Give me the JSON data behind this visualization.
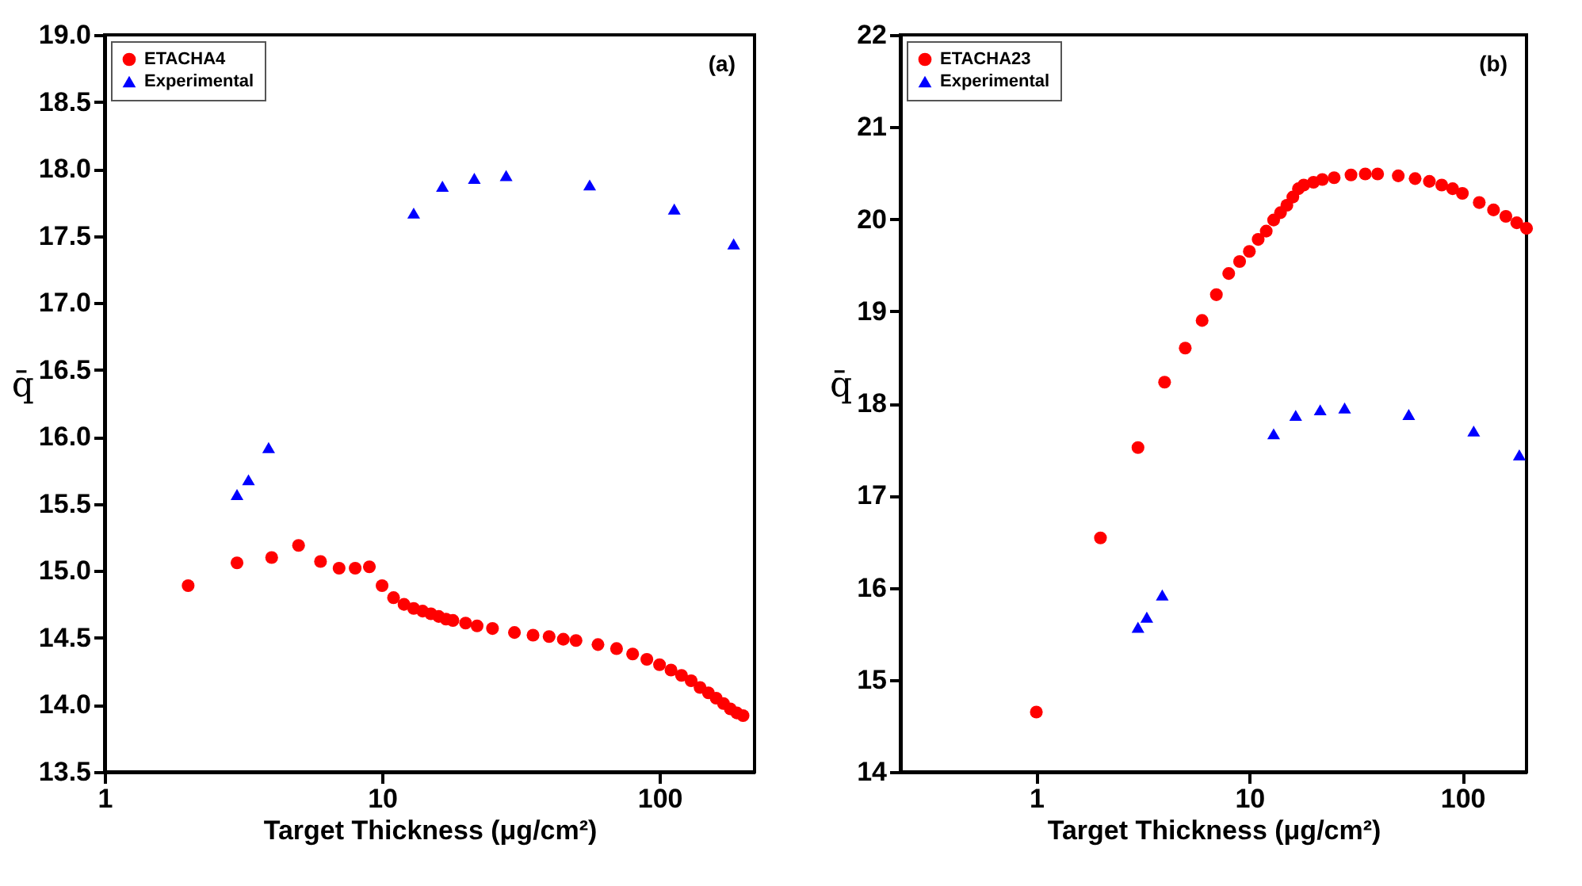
{
  "chart_data": [
    {
      "type": "scatter",
      "xlabel": "Target Thickness (μg/cm²)",
      "ylabel": "q̄",
      "annotations": [
        "(a)"
      ],
      "log": "x",
      "grid": false,
      "legend": "top left",
      "xlim": [
        1,
        220
      ],
      "xticks": [
        1,
        10,
        100
      ],
      "ylim": [
        13.5,
        19.0
      ],
      "yticks": [
        {
          "value": 13.5,
          "label": "13.5"
        },
        {
          "value": 14.0,
          "label": "14.0"
        },
        {
          "value": 14.5,
          "label": "14.5"
        },
        {
          "value": 15.0,
          "label": "15.0"
        },
        {
          "value": 15.5,
          "label": "15.5"
        },
        {
          "value": 16.0,
          "label": "16.0"
        },
        {
          "value": 16.5,
          "label": "16.5"
        },
        {
          "value": 17.0,
          "label": "17.0"
        },
        {
          "value": 17.5,
          "label": "17.5"
        },
        {
          "value": 18.0,
          "label": "18.0"
        },
        {
          "value": 18.5,
          "label": "18.5"
        },
        {
          "value": 19.0,
          "label": "19.0"
        }
      ],
      "series": [
        {
          "name": "ETACHA4",
          "color": "#ff0000",
          "marker": "circle",
          "x": [
            2,
            3,
            4,
            5,
            6,
            7,
            8,
            9,
            10,
            11,
            12,
            13,
            14,
            15,
            16,
            17,
            18,
            20,
            22,
            25,
            30,
            35,
            40,
            45,
            50,
            60,
            70,
            80,
            90,
            100,
            110,
            120,
            130,
            140,
            150,
            160,
            170,
            180,
            190,
            200
          ],
          "values": [
            14.89,
            15.06,
            15.1,
            15.19,
            15.07,
            15.02,
            15.02,
            15.03,
            14.89,
            14.8,
            14.75,
            14.72,
            14.7,
            14.68,
            14.66,
            14.64,
            14.63,
            14.61,
            14.59,
            14.57,
            14.54,
            14.52,
            14.51,
            14.49,
            14.48,
            14.45,
            14.42,
            14.38,
            14.34,
            14.3,
            14.26,
            14.22,
            14.18,
            14.13,
            14.09,
            14.05,
            14.01,
            13.97,
            13.94,
            13.92
          ]
        },
        {
          "name": "Experimental",
          "color": "#0000ff",
          "marker": "triangle",
          "x": [
            3,
            3.3,
            3.9,
            13,
            16.5,
            21.5,
            28,
            56,
            113,
            185
          ],
          "values": [
            15.57,
            15.68,
            15.92,
            17.67,
            17.87,
            17.93,
            17.95,
            17.88,
            17.7,
            17.44
          ]
        }
      ]
    },
    {
      "type": "scatter",
      "xlabel": "Target Thickness (μg/cm²)",
      "ylabel": "q̄",
      "annotations": [
        "(b)"
      ],
      "log": "x",
      "grid": false,
      "legend": "top left",
      "xlim": [
        0.23,
        200
      ],
      "xticks": [
        1,
        10,
        100
      ],
      "ylim": [
        14,
        22
      ],
      "yticks": [
        14,
        15,
        16,
        17,
        18,
        19,
        20,
        21,
        22
      ],
      "series": [
        {
          "name": "ETACHA23",
          "color": "#ff0000",
          "marker": "circle",
          "x": [
            1,
            2,
            3,
            4,
            5,
            6,
            7,
            8,
            9,
            10,
            11,
            12,
            13,
            14,
            15,
            16,
            17,
            18,
            20,
            22,
            25,
            30,
            35,
            40,
            50,
            60,
            70,
            80,
            90,
            100,
            120,
            140,
            160,
            180,
            200
          ],
          "values": [
            14.65,
            16.54,
            17.52,
            18.23,
            18.6,
            18.9,
            19.18,
            19.41,
            19.54,
            19.65,
            19.78,
            19.87,
            19.99,
            20.07,
            20.15,
            20.24,
            20.33,
            20.37,
            20.4,
            20.43,
            20.45,
            20.48,
            20.49,
            20.49,
            20.47,
            20.44,
            20.41,
            20.37,
            20.33,
            20.28,
            20.18,
            20.1,
            20.03,
            19.96,
            19.9
          ]
        },
        {
          "name": "Experimental",
          "color": "#0000ff",
          "marker": "triangle",
          "x": [
            3,
            3.3,
            3.9,
            13,
            16.5,
            21.5,
            28,
            56,
            113,
            185
          ],
          "values": [
            15.57,
            15.68,
            15.92,
            17.67,
            17.87,
            17.93,
            17.95,
            17.88,
            17.7,
            17.44
          ]
        }
      ]
    }
  ]
}
